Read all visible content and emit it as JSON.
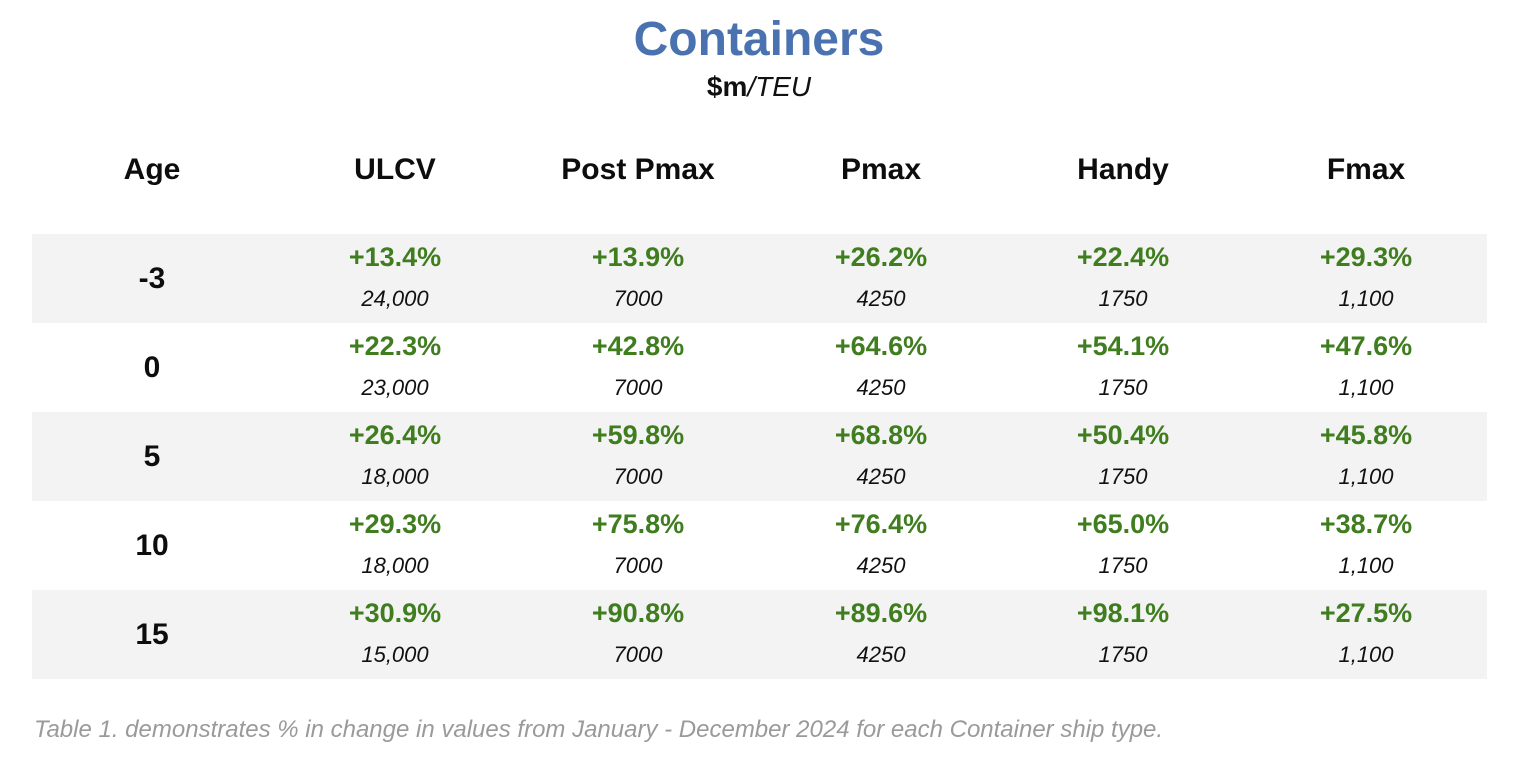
{
  "title": "Containers",
  "subtitle": {
    "bold": "$m",
    "rest": "/TEU"
  },
  "colors": {
    "title": "#4a72b0",
    "positive": "#3f7d1f",
    "row_shade": "#f3f3f3",
    "caption": "#9a9a9a"
  },
  "table": {
    "headers": [
      "Age",
      "ULCV",
      "Post Pmax",
      "Pmax",
      "Handy",
      "Fmax"
    ],
    "rows": [
      {
        "age": "-3",
        "cells": [
          {
            "pct": "+13.4%",
            "size": "24,000"
          },
          {
            "pct": "+13.9%",
            "size": "7000"
          },
          {
            "pct": "+26.2%",
            "size": "4250"
          },
          {
            "pct": "+22.4%",
            "size": "1750"
          },
          {
            "pct": "+29.3%",
            "size": "1,100"
          }
        ]
      },
      {
        "age": "0",
        "cells": [
          {
            "pct": "+22.3%",
            "size": "23,000"
          },
          {
            "pct": "+42.8%",
            "size": "7000"
          },
          {
            "pct": "+64.6%",
            "size": "4250"
          },
          {
            "pct": "+54.1%",
            "size": "1750"
          },
          {
            "pct": "+47.6%",
            "size": "1,100"
          }
        ]
      },
      {
        "age": "5",
        "cells": [
          {
            "pct": "+26.4%",
            "size": "18,000"
          },
          {
            "pct": "+59.8%",
            "size": "7000"
          },
          {
            "pct": "+68.8%",
            "size": "4250"
          },
          {
            "pct": "+50.4%",
            "size": "1750"
          },
          {
            "pct": "+45.8%",
            "size": "1,100"
          }
        ]
      },
      {
        "age": "10",
        "cells": [
          {
            "pct": "+29.3%",
            "size": "18,000"
          },
          {
            "pct": "+75.8%",
            "size": "7000"
          },
          {
            "pct": "+76.4%",
            "size": "4250"
          },
          {
            "pct": "+65.0%",
            "size": "1750"
          },
          {
            "pct": "+38.7%",
            "size": "1,100"
          }
        ]
      },
      {
        "age": "15",
        "cells": [
          {
            "pct": "+30.9%",
            "size": "15,000"
          },
          {
            "pct": "+90.8%",
            "size": "7000"
          },
          {
            "pct": "+89.6%",
            "size": "4250"
          },
          {
            "pct": "+98.1%",
            "size": "1750"
          },
          {
            "pct": "+27.5%",
            "size": "1,100"
          }
        ]
      }
    ]
  },
  "caption": "Table 1. demonstrates % in change in values from January - December 2024 for each Container ship type."
}
